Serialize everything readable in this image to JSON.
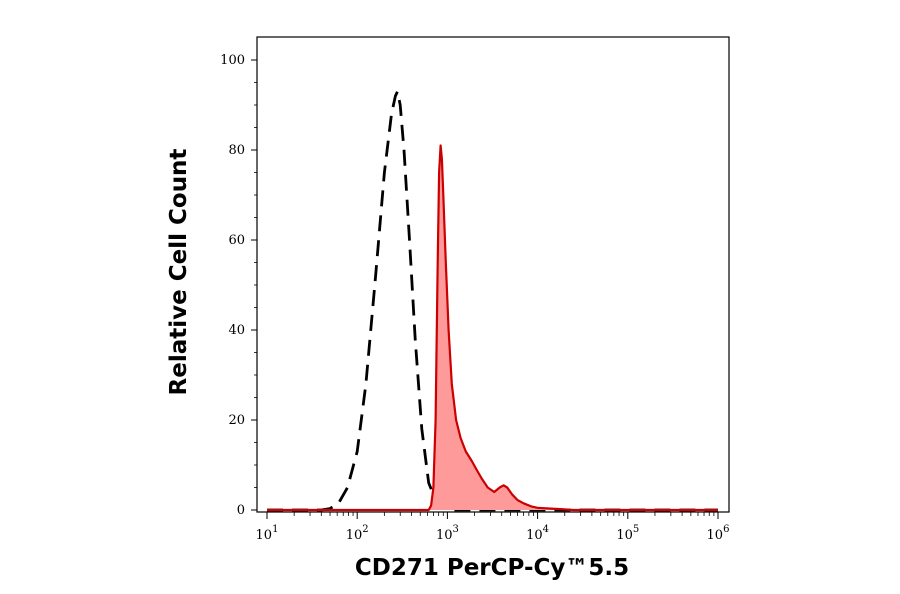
{
  "chart_data": {
    "type": "area",
    "xlabel": "CD271 PerCP-Cy™5.5",
    "ylabel": "Relative Cell Count",
    "xscale": "log",
    "xlim": [
      10,
      1000000
    ],
    "ylim": [
      0,
      100
    ],
    "grid": false,
    "y_ticks": [
      {
        "value": 0,
        "label": "0"
      },
      {
        "value": 20,
        "label": "20"
      },
      {
        "value": 40,
        "label": "40"
      },
      {
        "value": 60,
        "label": "60"
      },
      {
        "value": 80,
        "label": "80"
      },
      {
        "value": 100,
        "label": "100"
      }
    ],
    "x_ticks": [
      {
        "value": 10,
        "base": "10",
        "exp": "1"
      },
      {
        "value": 100,
        "base": "10",
        "exp": "2"
      },
      {
        "value": 1000,
        "base": "10",
        "exp": "3"
      },
      {
        "value": 10000,
        "base": "10",
        "exp": "4"
      },
      {
        "value": 100000,
        "base": "10",
        "exp": "5"
      },
      {
        "value": 1000000,
        "base": "10",
        "exp": "6"
      }
    ],
    "series": [
      {
        "style": "dashed",
        "color": "#000000",
        "fill": "none",
        "x": [
          10,
          40,
          50,
          62,
          78,
          100,
          125,
          160,
          200,
          240,
          265,
          280,
          300,
          330,
          380,
          440,
          520,
          620,
          750,
          900,
          1100,
          1500,
          1000000
        ],
        "y": [
          0,
          0,
          0.3,
          1.5,
          5,
          13,
          28,
          52,
          75,
          88,
          92,
          93,
          90,
          80,
          60,
          38,
          18,
          6,
          2,
          0.5,
          0,
          0,
          0
        ]
      },
      {
        "style": "solid",
        "color": "#cc0000",
        "fill": "#ff9a9a",
        "x": [
          10,
          620,
          660,
          700,
          740,
          780,
          810,
          840,
          870,
          900,
          960,
          1030,
          1120,
          1250,
          1400,
          1600,
          1850,
          2100,
          2400,
          2800,
          3300,
          3800,
          4200,
          4600,
          5200,
          6000,
          7000,
          8500,
          10000,
          14000,
          18000,
          25000,
          50000,
          1000000
        ],
        "y": [
          0,
          0,
          1,
          5,
          20,
          55,
          75,
          81,
          78,
          70,
          55,
          40,
          28,
          20,
          16,
          13,
          11,
          9,
          7,
          5,
          4,
          5,
          5.5,
          5,
          3.5,
          2.2,
          1.5,
          0.8,
          0.5,
          0.3,
          0.2,
          0,
          0,
          0
        ]
      }
    ]
  }
}
